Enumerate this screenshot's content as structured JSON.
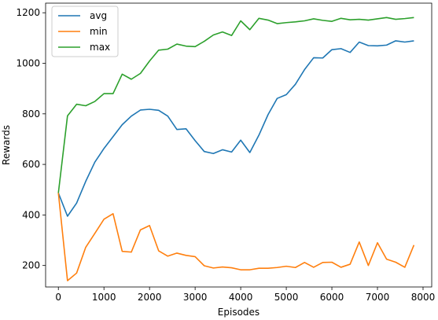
{
  "chart_data": {
    "type": "line",
    "title": "",
    "xlabel": "Episodes",
    "ylabel": "Rewards",
    "xlim": [
      -280,
      8190
    ],
    "ylim": [
      115,
      1238
    ],
    "xticks": [
      0,
      1000,
      2000,
      3000,
      4000,
      5000,
      6000,
      7000,
      8000
    ],
    "yticks": [
      200,
      400,
      600,
      800,
      1000,
      1200
    ],
    "grid": false,
    "legend_position": "top-left",
    "x": [
      0,
      200,
      400,
      600,
      800,
      1000,
      1200,
      1400,
      1600,
      1800,
      2000,
      2200,
      2400,
      2600,
      2800,
      3000,
      3200,
      3400,
      3600,
      3800,
      4000,
      4200,
      4400,
      4600,
      4800,
      5000,
      5200,
      5400,
      5600,
      5800,
      6000,
      6200,
      6400,
      6600,
      6800,
      7000,
      7200,
      7400,
      7600,
      7800
    ],
    "series": [
      {
        "name": "avg",
        "color": "#1f77b4",
        "values": [
          487,
          395,
          447,
          533,
          609,
          663,
          710,
          757,
          791,
          815,
          818,
          814,
          791,
          738,
          741,
          694,
          651,
          643,
          658,
          649,
          696,
          647,
          716,
          797,
          861,
          876,
          917,
          975,
          1022,
          1021,
          1054,
          1058,
          1043,
          1084,
          1070,
          1069,
          1072,
          1089,
          1084,
          1089
        ]
      },
      {
        "name": "min",
        "color": "#ff7f0e",
        "values": [
          487,
          140,
          170,
          272,
          327,
          383,
          405,
          256,
          253,
          341,
          358,
          258,
          237,
          249,
          240,
          235,
          199,
          190,
          194,
          191,
          183,
          183,
          189,
          189,
          192,
          197,
          192,
          212,
          193,
          212,
          213,
          193,
          205,
          293,
          200,
          290,
          225,
          213,
          193,
          281
        ]
      },
      {
        "name": "max",
        "color": "#2ca02c",
        "values": [
          487,
          792,
          838,
          832,
          849,
          880,
          880,
          957,
          937,
          960,
          1009,
          1052,
          1056,
          1076,
          1068,
          1066,
          1087,
          1112,
          1124,
          1110,
          1168,
          1133,
          1178,
          1171,
          1157,
          1161,
          1164,
          1168,
          1176,
          1170,
          1166,
          1178,
          1172,
          1174,
          1171,
          1176,
          1181,
          1174,
          1177,
          1181
        ]
      }
    ]
  }
}
